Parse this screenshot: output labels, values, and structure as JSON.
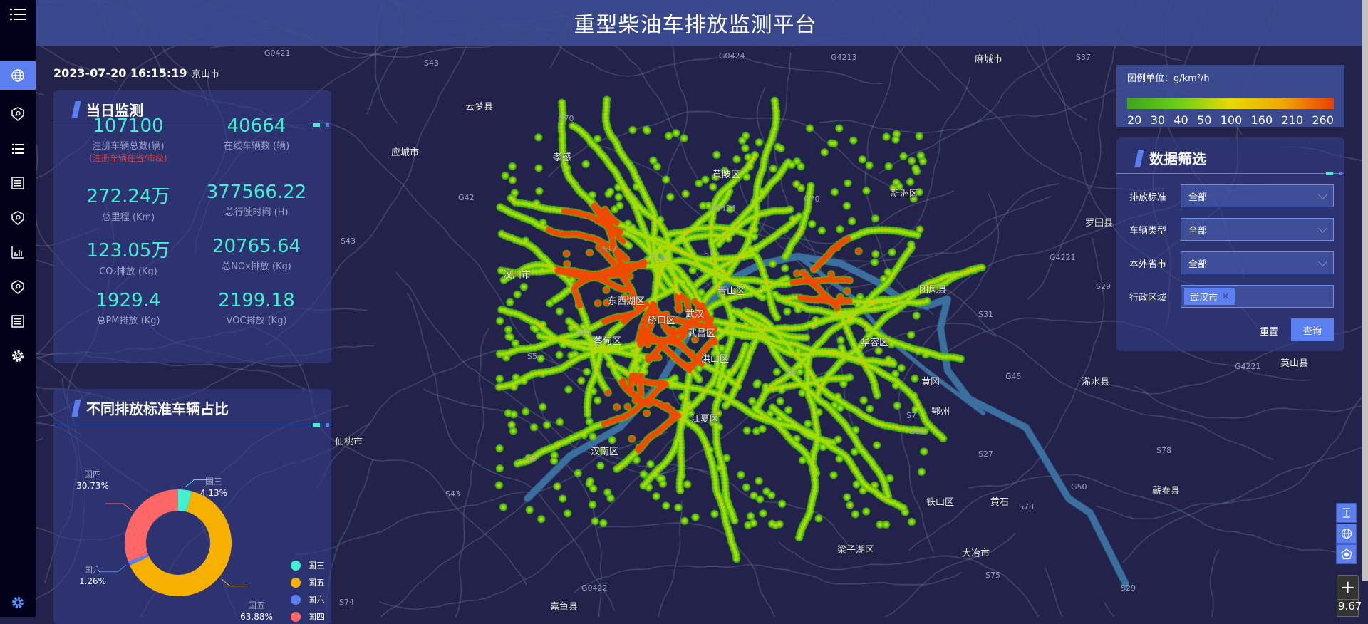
{
  "header": {
    "title": "重型柴油车排放监测平台"
  },
  "clock": "2023-07-20 16:15:19",
  "sidebar": {
    "items": [
      {
        "icon": "menu-icon"
      },
      {
        "icon": "globe-icon",
        "active": true
      },
      {
        "icon": "shield-search-icon"
      },
      {
        "icon": "list-icon"
      },
      {
        "icon": "report-icon"
      },
      {
        "icon": "shield-search-icon"
      },
      {
        "icon": "bar-chart-icon"
      },
      {
        "icon": "shield-search-icon"
      },
      {
        "icon": "report-icon"
      },
      {
        "icon": "gear-icon"
      }
    ],
    "bottom_icon": "gear-icon"
  },
  "daily": {
    "title": "当日监测",
    "stats": [
      {
        "value": "107100",
        "label": "注册车辆总数(辆)",
        "note": "(注册车辆在省/市级)"
      },
      {
        "value": "40664",
        "label": "在线车辆数 (辆)"
      },
      {
        "value": "272.24万",
        "label": "总里程 (Km)"
      },
      {
        "value": "377566.22",
        "label": "总行驶时间 (H)"
      },
      {
        "value": "123.05万",
        "label": "CO₂排放 (Kg)"
      },
      {
        "value": "20765.64",
        "label": "总NOx排放 (Kg)"
      },
      {
        "value": "1929.4",
        "label": "总PM排放 (Kg)"
      },
      {
        "value": "2199.18",
        "label": "VOC排放 (Kg)"
      }
    ]
  },
  "standards": {
    "title": "不同排放标准车辆占比"
  },
  "chart_data": {
    "type": "pie",
    "donut": true,
    "categories": [
      "国三",
      "国五",
      "国六",
      "国四"
    ],
    "values": [
      4.13,
      63.88,
      1.26,
      30.73
    ],
    "labels": [
      "4.13%",
      "63.88%",
      "1.26%",
      "30.73%"
    ],
    "colors": [
      "#40f0d0",
      "#f5b000",
      "#5b7ff0",
      "#ff6666"
    ],
    "legend": "bottom-right"
  },
  "legend": {
    "title": "图例单位：g/km²/h",
    "ticks": [
      "20",
      "30",
      "40",
      "50",
      "100",
      "160",
      "210",
      "260"
    ],
    "gradient": [
      "#3fa320",
      "#6ad018",
      "#e8d800",
      "#f0a800",
      "#e84000"
    ]
  },
  "filter": {
    "title": "数据筛选",
    "rows": [
      {
        "label": "排放标准",
        "value": "全部"
      },
      {
        "label": "车辆类型",
        "value": "全部"
      },
      {
        "label": "本外省市",
        "value": "全部"
      },
      {
        "label": "行政区域",
        "tag": "武汉市"
      }
    ],
    "reset": "重置",
    "query": "查询"
  },
  "map": {
    "zoom": "9.67",
    "controls": [
      "height-icon",
      "globe-icon",
      "pentagon-icon"
    ],
    "places": [
      [
        "云梦县",
        673,
        147
      ],
      [
        "应城市",
        569,
        211
      ],
      [
        "孝感",
        796,
        218
      ],
      [
        "黄陂区",
        1020,
        242
      ],
      [
        "新洲区",
        1270,
        269
      ],
      [
        "汉川市",
        726,
        383
      ],
      [
        "东西湖区",
        873,
        420
      ],
      [
        "硚口区",
        929,
        447
      ],
      [
        "武汉",
        982,
        438
      ],
      [
        "青山区",
        1027,
        406
      ],
      [
        "武昌区",
        985,
        465
      ],
      [
        "蔡甸区",
        853,
        476
      ],
      [
        "洪山区",
        1004,
        501
      ],
      [
        "团风县",
        1310,
        404
      ],
      [
        "华容区",
        1228,
        478
      ],
      [
        "黄冈",
        1313,
        533
      ],
      [
        "鄂州",
        1327,
        575
      ],
      [
        "浠水县",
        1538,
        533
      ],
      [
        "江夏区",
        990,
        585
      ],
      [
        "汉南区",
        849,
        631
      ],
      [
        "仙桃市",
        478,
        617
      ],
      [
        "铁山区",
        1320,
        702
      ],
      [
        "黄石",
        1410,
        702
      ],
      [
        "蕲春县",
        1637,
        686
      ],
      [
        "梁子湖区",
        1195,
        769
      ],
      [
        "大冶市",
        1370,
        774
      ],
      [
        "嘉鱼县",
        800,
        857
      ],
      [
        "麻城市",
        1388,
        44
      ],
      [
        "京山市",
        289,
        149
      ],
      [
        "罗田县",
        1615,
        310
      ],
      [
        "英山县",
        1780,
        343
      ]
    ],
    "roads": [
      [
        "G0421",
        383,
        50
      ],
      [
        "S43",
        607,
        88
      ],
      [
        "G0424",
        1013,
        70
      ],
      [
        "G4213",
        1178,
        32
      ],
      [
        "S37",
        1522,
        44
      ],
      [
        "G70",
        795,
        166
      ],
      [
        "G42",
        655,
        277
      ],
      [
        "S43",
        490,
        338
      ],
      [
        "G0424",
        1008,
        292
      ],
      [
        "G70",
        1140,
        279
      ],
      [
        "G4221",
        1745,
        322
      ],
      [
        "G4221",
        1485,
        361
      ],
      [
        "S29",
        1562,
        402
      ],
      [
        "S31",
        1385,
        441
      ],
      [
        "G45",
        1423,
        528
      ],
      [
        "S7",
        1284,
        583
      ],
      [
        "G50",
        1288,
        605
      ],
      [
        "S27",
        1385,
        637
      ],
      [
        "S78",
        1635,
        632
      ],
      [
        "G50",
        1515,
        683
      ],
      [
        "S78",
        1442,
        711
      ],
      [
        "S75",
        1395,
        807
      ],
      [
        "S29",
        1585,
        825
      ],
      [
        "S43",
        637,
        693
      ],
      [
        "G0422",
        828,
        825
      ],
      [
        "S74",
        320,
        845
      ],
      [
        "S3",
        750,
        643
      ],
      [
        "S5",
        752,
        500
      ],
      [
        "S17",
        857,
        349
      ],
      [
        "S18",
        925,
        362
      ],
      [
        "S1",
        1000,
        356
      ],
      [
        "S8",
        1117,
        521
      ],
      [
        "S15",
        820,
        465
      ]
    ]
  }
}
